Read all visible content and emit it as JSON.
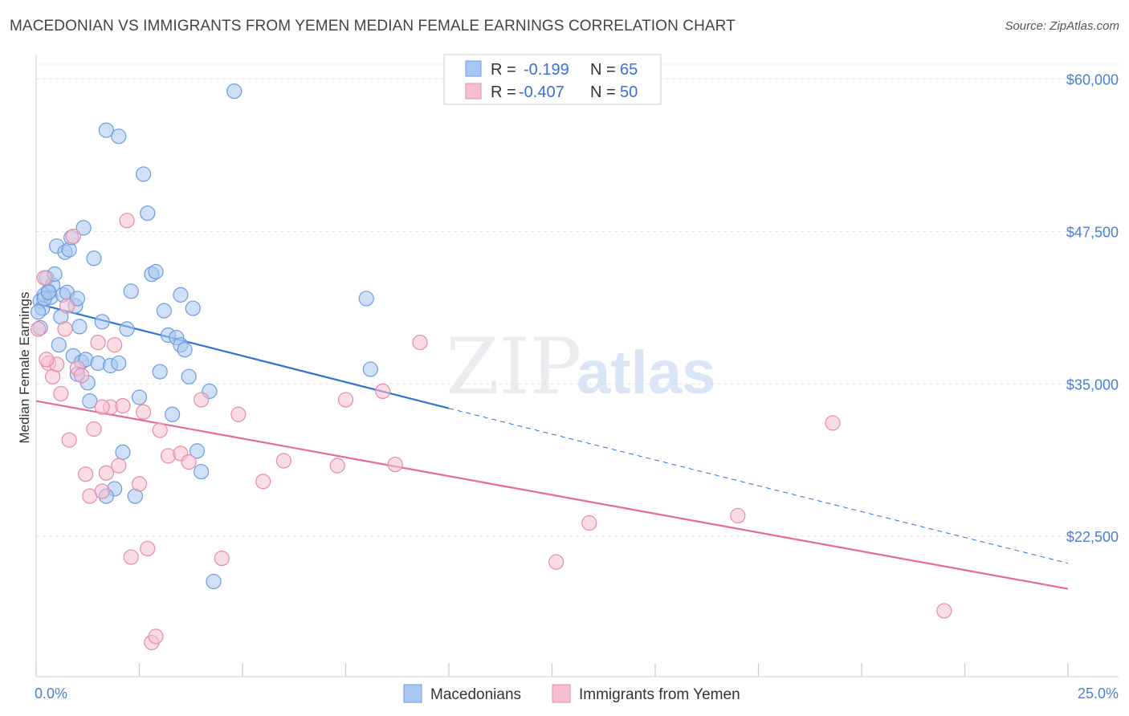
{
  "title": "MACEDONIAN VS IMMIGRANTS FROM YEMEN MEDIAN FEMALE EARNINGS CORRELATION CHART",
  "source": "Source: ZipAtlas.com",
  "watermark": {
    "zip": "ZIP",
    "atlas": "atlas"
  },
  "legend": {
    "rows": [
      {
        "r_label": "R =",
        "r_value": "-0.199",
        "n_label": "N =",
        "n_value": "65"
      },
      {
        "r_label": "R =",
        "r_value": "-0.407",
        "n_label": "N =",
        "n_value": "50"
      }
    ]
  },
  "chart_data": {
    "type": "scatter",
    "title": "MACEDONIAN VS IMMIGRANTS FROM YEMEN MEDIAN FEMALE EARNINGS CORRELATION CHART",
    "xlabel": "",
    "ylabel": "Median Female Earnings",
    "xlim": [
      0,
      25
    ],
    "ylim": [
      11000,
      62000
    ],
    "x_tick_labels": [
      "0.0%",
      "25.0%"
    ],
    "y_ticks": [
      22500,
      35000,
      47500,
      60000
    ],
    "y_tick_labels": [
      "$22,500",
      "$35,000",
      "$47,500",
      "$60,000"
    ],
    "grid": true,
    "legend_position": "top-center",
    "colors": {
      "blue_fill": "#a8c6f0",
      "blue_stroke": "#6d9de0",
      "blue_line": "#2f74d0",
      "pink_fill": "#f6bfd0",
      "pink_stroke": "#e98aa9",
      "pink_line": "#e56b96"
    },
    "series": [
      {
        "name": "Macedonians",
        "r": -0.199,
        "n": 65,
        "trend": {
          "x0": 0.0,
          "y0": 41600,
          "x1": 10.0,
          "y1": 33000,
          "x_dash_end": 25.0,
          "y_dash_end": 20300
        },
        "points": [
          [
            0.1,
            41800
          ],
          [
            0.15,
            41200
          ],
          [
            0.2,
            42300
          ],
          [
            0.25,
            43700
          ],
          [
            0.3,
            42600
          ],
          [
            0.35,
            42100
          ],
          [
            0.4,
            43100
          ],
          [
            0.45,
            44000
          ],
          [
            0.5,
            46300
          ],
          [
            0.55,
            38200
          ],
          [
            0.6,
            40500
          ],
          [
            0.65,
            42300
          ],
          [
            0.7,
            45800
          ],
          [
            0.75,
            42500
          ],
          [
            0.8,
            46000
          ],
          [
            0.85,
            47000
          ],
          [
            0.9,
            37300
          ],
          [
            0.95,
            41400
          ],
          [
            1.0,
            42000
          ],
          [
            1.05,
            39700
          ],
          [
            1.1,
            36800
          ],
          [
            1.15,
            47800
          ],
          [
            1.2,
            37000
          ],
          [
            1.25,
            35100
          ],
          [
            1.3,
            33600
          ],
          [
            1.4,
            45300
          ],
          [
            1.5,
            36700
          ],
          [
            1.6,
            40100
          ],
          [
            1.7,
            55800
          ],
          [
            1.8,
            36500
          ],
          [
            1.9,
            26400
          ],
          [
            2.0,
            55300
          ],
          [
            2.1,
            29400
          ],
          [
            2.2,
            39500
          ],
          [
            2.3,
            42600
          ],
          [
            2.4,
            25800
          ],
          [
            2.5,
            33900
          ],
          [
            2.6,
            52200
          ],
          [
            2.7,
            49000
          ],
          [
            2.8,
            44000
          ],
          [
            2.9,
            44200
          ],
          [
            3.0,
            36000
          ],
          [
            3.1,
            41000
          ],
          [
            3.2,
            39000
          ],
          [
            3.3,
            32500
          ],
          [
            3.4,
            38800
          ],
          [
            3.5,
            38200
          ],
          [
            3.6,
            37800
          ],
          [
            3.7,
            35600
          ],
          [
            3.8,
            41200
          ],
          [
            3.9,
            29500
          ],
          [
            4.0,
            27800
          ],
          [
            4.2,
            34400
          ],
          [
            4.3,
            18800
          ],
          [
            4.8,
            59000
          ],
          [
            8.0,
            42000
          ],
          [
            8.1,
            36200
          ],
          [
            0.05,
            40900
          ],
          [
            0.1,
            39600
          ],
          [
            0.2,
            42000
          ],
          [
            1.0,
            35800
          ],
          [
            1.7,
            25800
          ],
          [
            2.0,
            36700
          ],
          [
            3.5,
            42300
          ],
          [
            0.3,
            42500
          ]
        ]
      },
      {
        "name": "Immigrants from Yemen",
        "r": -0.407,
        "n": 50,
        "trend": {
          "x0": 0.0,
          "y0": 33600,
          "x1": 25.0,
          "y1": 18200
        },
        "points": [
          [
            0.05,
            39500
          ],
          [
            0.2,
            43700
          ],
          [
            0.3,
            36700
          ],
          [
            0.4,
            35600
          ],
          [
            0.5,
            36600
          ],
          [
            0.6,
            34200
          ],
          [
            0.7,
            39500
          ],
          [
            0.75,
            41400
          ],
          [
            0.8,
            30400
          ],
          [
            0.9,
            47100
          ],
          [
            1.0,
            36300
          ],
          [
            1.1,
            35700
          ],
          [
            1.2,
            27600
          ],
          [
            1.3,
            25800
          ],
          [
            1.4,
            31300
          ],
          [
            1.5,
            38400
          ],
          [
            1.6,
            26200
          ],
          [
            1.7,
            27700
          ],
          [
            1.8,
            33100
          ],
          [
            1.9,
            38200
          ],
          [
            2.0,
            28300
          ],
          [
            2.1,
            33200
          ],
          [
            2.2,
            48400
          ],
          [
            2.3,
            20800
          ],
          [
            2.5,
            26800
          ],
          [
            2.6,
            32700
          ],
          [
            2.7,
            21500
          ],
          [
            2.8,
            13800
          ],
          [
            2.9,
            14300
          ],
          [
            3.0,
            31200
          ],
          [
            3.2,
            29100
          ],
          [
            3.5,
            29300
          ],
          [
            3.7,
            28600
          ],
          [
            4.0,
            33700
          ],
          [
            4.5,
            20700
          ],
          [
            4.9,
            32500
          ],
          [
            5.5,
            27000
          ],
          [
            6.0,
            28700
          ],
          [
            7.3,
            28300
          ],
          [
            7.5,
            33700
          ],
          [
            8.4,
            34400
          ],
          [
            8.7,
            28400
          ],
          [
            9.3,
            38400
          ],
          [
            12.6,
            20400
          ],
          [
            13.4,
            23600
          ],
          [
            17.0,
            24200
          ],
          [
            19.3,
            31800
          ],
          [
            22.0,
            16400
          ],
          [
            0.25,
            37000
          ],
          [
            1.6,
            33100
          ]
        ]
      }
    ]
  }
}
